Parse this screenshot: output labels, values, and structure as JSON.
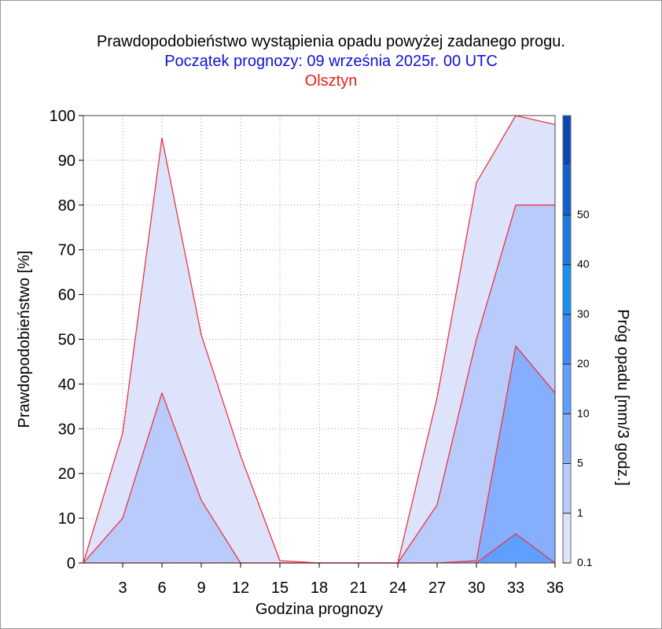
{
  "header": {
    "title": "Prawdopodobieństwo wystąpienia opadu powyżej zadanego progu.",
    "subtitle": "Początek prognozy: 09 września 2025r. 00 UTC",
    "location": "Olsztyn"
  },
  "colors": {
    "title": "#000000",
    "subtitle": "#1010dd",
    "location": "#ee1c1c",
    "outline": "#ee3344",
    "grid": "#999999"
  },
  "chart_data": {
    "type": "area",
    "xlabel": "Godzina prognozy",
    "ylabel": "Prawdopodobieństwo [%]",
    "xlim": [
      0,
      36
    ],
    "ylim": [
      0,
      100
    ],
    "x_ticks": [
      3,
      6,
      9,
      12,
      15,
      18,
      21,
      24,
      27,
      30,
      33,
      36
    ],
    "y_ticks": [
      0,
      10,
      20,
      30,
      40,
      50,
      60,
      70,
      80,
      90,
      100
    ],
    "grid": true,
    "x": [
      0,
      3,
      6,
      9,
      12,
      15,
      18,
      21,
      24,
      27,
      30,
      33,
      36
    ],
    "series": [
      {
        "threshold": 0.1,
        "color": "#dde3fb",
        "values": [
          0,
          29,
          95,
          51,
          24,
          0.5,
          0,
          0,
          0,
          37,
          85,
          100,
          98
        ]
      },
      {
        "threshold": 1,
        "color": "#b9cbfa",
        "values": [
          0,
          10,
          38,
          14,
          0,
          0,
          0,
          0,
          0,
          13,
          50,
          80,
          80
        ]
      },
      {
        "threshold": 5,
        "color": "#85aefc",
        "values": [
          0,
          0,
          0,
          0,
          0,
          0,
          0,
          0,
          0,
          0,
          0.5,
          48.5,
          38
        ]
      },
      {
        "threshold": 10,
        "color": "#5da0ff",
        "values": [
          0,
          0,
          0,
          0,
          0,
          0,
          0,
          0,
          0,
          0,
          0,
          6.5,
          0
        ]
      }
    ],
    "colorbar": {
      "label": "Próg opadu [mm/3 godz.]",
      "tick_labels": [
        "0.1",
        "1",
        "5",
        "10",
        "20",
        "30",
        "40",
        "50"
      ],
      "colors": [
        "#dde3fb",
        "#b9cbfa",
        "#85aefc",
        "#5da0ff",
        "#3a8bf5",
        "#1a90f0",
        "#1a78e0",
        "#0f60cc",
        "#0a48b0"
      ]
    }
  }
}
